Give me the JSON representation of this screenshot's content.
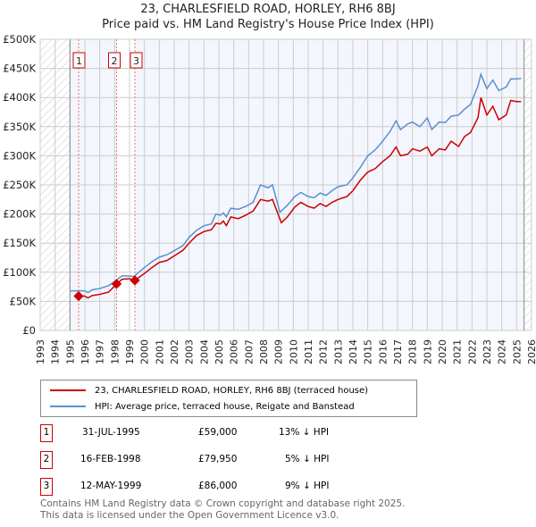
{
  "chart_data": {
    "type": "line",
    "title": "23, CHARLESFIELD ROAD, HORLEY, RH6 8BJ",
    "subtitle": "Price paid vs. HM Land Registry's House Price Index (HPI)",
    "xlim": [
      1993,
      2026
    ],
    "ylim": [
      0,
      500000
    ],
    "x_ticks": [
      "1993",
      "1994",
      "1995",
      "1996",
      "1997",
      "1998",
      "1999",
      "2000",
      "2001",
      "2002",
      "2003",
      "2004",
      "2005",
      "2006",
      "2007",
      "2008",
      "2009",
      "2010",
      "2011",
      "2012",
      "2013",
      "2014",
      "2015",
      "2016",
      "2017",
      "2018",
      "2019",
      "2020",
      "2021",
      "2022",
      "2023",
      "2024",
      "2025",
      "2026"
    ],
    "y_ticks": [
      {
        "v": 0,
        "label": "£0"
      },
      {
        "v": 50000,
        "label": "£50K"
      },
      {
        "v": 100000,
        "label": "£100K"
      },
      {
        "v": 150000,
        "label": "£150K"
      },
      {
        "v": 200000,
        "label": "£200K"
      },
      {
        "v": 250000,
        "label": "£250K"
      },
      {
        "v": 300000,
        "label": "£300K"
      },
      {
        "v": 350000,
        "label": "£350K"
      },
      {
        "v": 400000,
        "label": "£400K"
      },
      {
        "v": 450000,
        "label": "£450K"
      },
      {
        "v": 500000,
        "label": "£500K"
      }
    ],
    "grid": true,
    "series": [
      {
        "name": "23, CHARLESFIELD ROAD, HORLEY, RH6 8BJ (terraced house)",
        "color": "#cc0000",
        "points": [
          [
            1995.58,
            59
          ],
          [
            1996,
            59
          ],
          [
            1996.2,
            56
          ],
          [
            1996.5,
            60
          ],
          [
            1997,
            62
          ],
          [
            1997.6,
            66
          ],
          [
            1998.13,
            79.95
          ],
          [
            1998.5,
            88
          ],
          [
            1999,
            89
          ],
          [
            1999.36,
            86
          ],
          [
            2000,
            98
          ],
          [
            2000.5,
            108
          ],
          [
            2001,
            117
          ],
          [
            2001.5,
            120
          ],
          [
            2002,
            128
          ],
          [
            2002.6,
            138
          ],
          [
            2003,
            150
          ],
          [
            2003.5,
            163
          ],
          [
            2004,
            170
          ],
          [
            2004.5,
            173
          ],
          [
            2004.8,
            184
          ],
          [
            2005.1,
            183
          ],
          [
            2005.3,
            188
          ],
          [
            2005.5,
            180
          ],
          [
            2005.8,
            195
          ],
          [
            2006.3,
            192
          ],
          [
            2006.8,
            198
          ],
          [
            2007.3,
            205
          ],
          [
            2007.8,
            225
          ],
          [
            2008.3,
            222
          ],
          [
            2008.6,
            225
          ],
          [
            2009.2,
            185
          ],
          [
            2009.6,
            195
          ],
          [
            2010.1,
            212
          ],
          [
            2010.5,
            220
          ],
          [
            2011,
            213
          ],
          [
            2011.4,
            210
          ],
          [
            2011.8,
            218
          ],
          [
            2012.2,
            213
          ],
          [
            2012.6,
            220
          ],
          [
            2013,
            225
          ],
          [
            2013.6,
            230
          ],
          [
            2014,
            240
          ],
          [
            2014.5,
            258
          ],
          [
            2015,
            272
          ],
          [
            2015.5,
            278
          ],
          [
            2016,
            290
          ],
          [
            2016.5,
            300
          ],
          [
            2016.9,
            315
          ],
          [
            2017.2,
            300
          ],
          [
            2017.7,
            303
          ],
          [
            2018,
            312
          ],
          [
            2018.5,
            308
          ],
          [
            2019,
            315
          ],
          [
            2019.3,
            300
          ],
          [
            2019.8,
            312
          ],
          [
            2020.2,
            310
          ],
          [
            2020.6,
            325
          ],
          [
            2021.1,
            316
          ],
          [
            2021.5,
            333
          ],
          [
            2021.9,
            340
          ],
          [
            2022.4,
            365
          ],
          [
            2022.6,
            400
          ],
          [
            2023,
            370
          ],
          [
            2023.4,
            385
          ],
          [
            2023.8,
            362
          ],
          [
            2024.3,
            370
          ],
          [
            2024.6,
            395
          ],
          [
            2025,
            393
          ],
          [
            2025.3,
            393
          ]
        ]
      },
      {
        "name": "HPI: Average price, terraced house, Reigate and Banstead",
        "color": "#5b8fd0",
        "points": [
          [
            1995,
            68
          ],
          [
            1996,
            68
          ],
          [
            1996.2,
            65
          ],
          [
            1996.5,
            70
          ],
          [
            1997,
            72
          ],
          [
            1997.6,
            77
          ],
          [
            1998,
            84
          ],
          [
            1998.5,
            94
          ],
          [
            1999.3,
            93
          ],
          [
            2000,
            108
          ],
          [
            2000.5,
            118
          ],
          [
            2001,
            126
          ],
          [
            2001.5,
            130
          ],
          [
            2002,
            137
          ],
          [
            2002.6,
            146
          ],
          [
            2003,
            160
          ],
          [
            2003.5,
            172
          ],
          [
            2004,
            180
          ],
          [
            2004.5,
            183
          ],
          [
            2004.8,
            200
          ],
          [
            2005.1,
            198
          ],
          [
            2005.3,
            202
          ],
          [
            2005.5,
            195
          ],
          [
            2005.8,
            210
          ],
          [
            2006.3,
            208
          ],
          [
            2006.8,
            213
          ],
          [
            2007.3,
            220
          ],
          [
            2007.8,
            250
          ],
          [
            2008.3,
            245
          ],
          [
            2008.6,
            250
          ],
          [
            2009.1,
            203
          ],
          [
            2009.6,
            215
          ],
          [
            2010.1,
            230
          ],
          [
            2010.5,
            237
          ],
          [
            2011,
            230
          ],
          [
            2011.4,
            228
          ],
          [
            2011.8,
            236
          ],
          [
            2012.2,
            232
          ],
          [
            2012.6,
            240
          ],
          [
            2013,
            247
          ],
          [
            2013.6,
            250
          ],
          [
            2014,
            262
          ],
          [
            2014.5,
            280
          ],
          [
            2015,
            300
          ],
          [
            2015.5,
            310
          ],
          [
            2016,
            325
          ],
          [
            2016.5,
            342
          ],
          [
            2016.9,
            360
          ],
          [
            2017.2,
            345
          ],
          [
            2017.7,
            355
          ],
          [
            2018,
            358
          ],
          [
            2018.5,
            350
          ],
          [
            2019,
            365
          ],
          [
            2019.3,
            345
          ],
          [
            2019.8,
            358
          ],
          [
            2020.2,
            357
          ],
          [
            2020.6,
            368
          ],
          [
            2021.1,
            370
          ],
          [
            2021.5,
            380
          ],
          [
            2021.9,
            388
          ],
          [
            2022.4,
            420
          ],
          [
            2022.6,
            440
          ],
          [
            2023,
            415
          ],
          [
            2023.4,
            430
          ],
          [
            2023.8,
            412
          ],
          [
            2024.3,
            418
          ],
          [
            2024.6,
            432
          ],
          [
            2025,
            432
          ],
          [
            2025.3,
            433
          ]
        ]
      }
    ],
    "sales": [
      {
        "n": "1",
        "x": 1995.58,
        "y": 59
      },
      {
        "n": "2",
        "x": 1998.13,
        "y": 79.95
      },
      {
        "n": "3",
        "x": 1999.36,
        "y": 86
      }
    ],
    "legend_placement": "below"
  },
  "legend": [
    "23, CHARLESFIELD ROAD, HORLEY, RH6 8BJ (terraced house)",
    "HPI: Average price, terraced house, Reigate and Banstead"
  ],
  "table": [
    {
      "n": "1",
      "date": "31-JUL-1995",
      "price": "£59,000",
      "diff": "13% ↓ HPI"
    },
    {
      "n": "2",
      "date": "16-FEB-1998",
      "price": "£79,950",
      "diff": "5% ↓ HPI"
    },
    {
      "n": "3",
      "date": "12-MAY-1999",
      "price": "£86,000",
      "diff": "9% ↓ HPI"
    }
  ],
  "footer": [
    "Contains HM Land Registry data © Crown copyright and database right 2025.",
    "This data is licensed under the Open Government Licence v3.0."
  ]
}
